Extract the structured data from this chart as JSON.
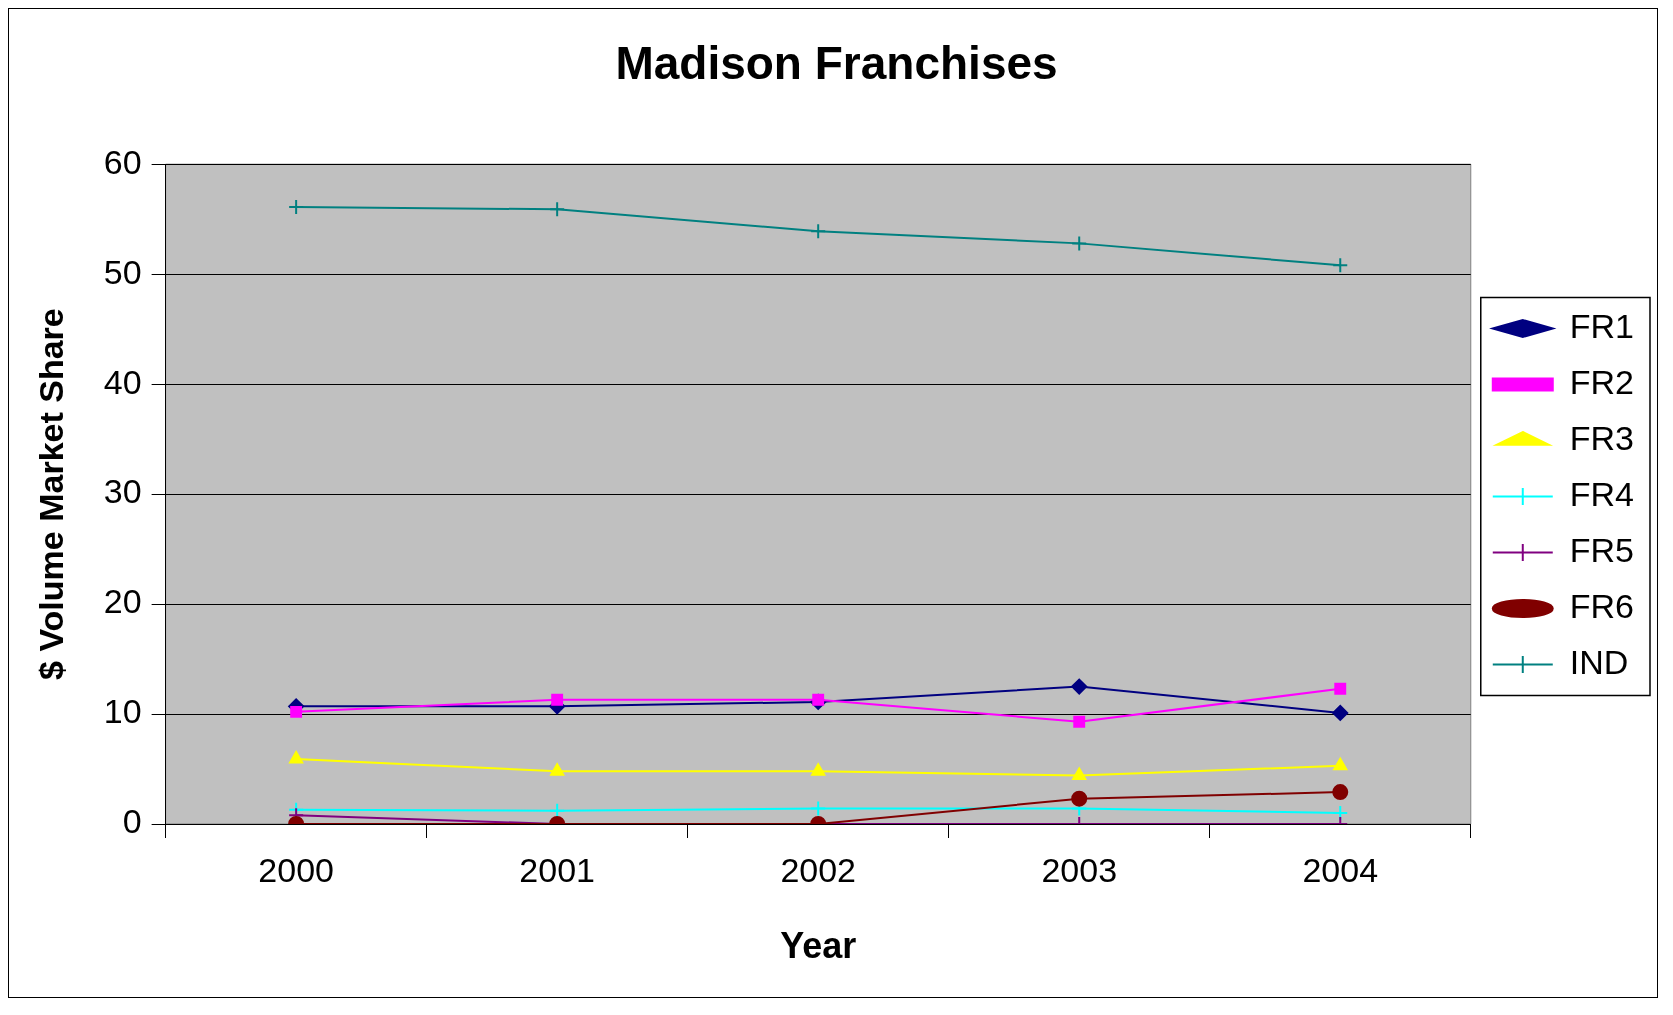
{
  "chart_data": {
    "type": "line",
    "title": "Madison Franchises",
    "xlabel": "Year",
    "ylabel": "$ Volume Market Share",
    "categories": [
      "2000",
      "2001",
      "2002",
      "2003",
      "2004"
    ],
    "series": [
      {
        "name": "FR1",
        "color": "#000080",
        "marker": "diamond",
        "values": [
          10.7,
          10.7,
          11.1,
          12.5,
          10.1
        ]
      },
      {
        "name": "FR2",
        "color": "#ff00ff",
        "marker": "square",
        "values": [
          10.2,
          11.3,
          11.3,
          9.3,
          12.3
        ]
      },
      {
        "name": "FR3",
        "color": "#ffff00",
        "marker": "triangle",
        "values": [
          5.9,
          4.8,
          4.8,
          4.4,
          5.3
        ]
      },
      {
        "name": "FR4",
        "color": "#00ffff",
        "marker": "cross",
        "values": [
          1.3,
          1.2,
          1.4,
          1.4,
          1.0
        ]
      },
      {
        "name": "FR5",
        "color": "#800080",
        "marker": "cross",
        "values": [
          0.8,
          0,
          0,
          0,
          0
        ]
      },
      {
        "name": "FR6",
        "color": "#800000",
        "marker": "circle",
        "values": [
          0,
          0,
          0,
          2.3,
          2.9
        ]
      },
      {
        "name": "IND",
        "color": "#008080",
        "marker": "cross",
        "values": [
          56.1,
          55.9,
          53.9,
          52.8,
          50.8
        ]
      }
    ],
    "ylim": [
      0,
      60
    ],
    "yticks": [
      0,
      10,
      20,
      30,
      40,
      50,
      60
    ],
    "grid": "y",
    "legend": "right"
  }
}
